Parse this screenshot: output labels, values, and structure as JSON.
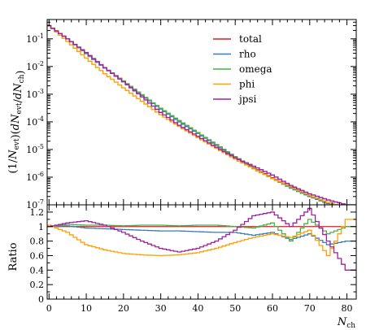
{
  "chart_data": [
    {
      "type": "line",
      "panel": "main",
      "ylabel": "(1/N_evt)(dN_evt/dN_ch)",
      "yscale": "log",
      "xlim": [
        -0.5,
        82.5
      ],
      "ylim": [
        1e-07,
        0.5
      ],
      "grid": false,
      "legend_position": "top-right",
      "ytick_labels": [
        "10^-1",
        "10^-2",
        "10^-3",
        "10^-4",
        "10^-5",
        "10^-6",
        "10^-7"
      ],
      "x": [
        0,
        5,
        10,
        15,
        20,
        25,
        30,
        35,
        40,
        45,
        50,
        55,
        60,
        65,
        70,
        75,
        80
      ],
      "series": [
        {
          "name": "total",
          "color": "#e41a1c",
          "values": [
            0.3,
            0.1,
            0.03,
            0.009,
            0.003,
            0.00095,
            0.0003,
            0.00011,
            4e-05,
            1.5e-05,
            5.5e-06,
            2.2e-06,
            9.5e-07,
            4.5e-07,
            2.2e-07,
            1.2e-07,
            8e-08
          ]
        },
        {
          "name": "rho",
          "color": "#377eb8",
          "values": [
            0.3,
            0.1,
            0.029,
            0.0088,
            0.0029,
            0.0009,
            0.00029,
            0.0001,
            3.8e-05,
            1.4e-05,
            5.2e-06,
            2e-06,
            9e-07,
            4e-07,
            2e-07,
            1.1e-07,
            7e-08
          ]
        },
        {
          "name": "omega",
          "color": "#4daf4a",
          "values": [
            0.3,
            0.1,
            0.03,
            0.009,
            0.003,
            0.00095,
            0.00031,
            0.00011,
            4.1e-05,
            1.5e-05,
            5.5e-06,
            2.1e-06,
            9e-07,
            4.2e-07,
            2.1e-07,
            1.2e-07,
            8e-08
          ]
        },
        {
          "name": "phi",
          "color": "#ff9f00",
          "values": [
            0.3,
            0.08,
            0.02,
            0.0055,
            0.0017,
            0.00055,
            0.00018,
            6.8e-05,
            2.7e-05,
            1.1e-05,
            4.5e-06,
            2e-06,
            9e-07,
            4.5e-07,
            2.2e-07,
            1.2e-07,
            8e-08
          ]
        },
        {
          "name": "jpsi",
          "color": "#a020a0",
          "values": [
            0.3,
            0.1,
            0.032,
            0.009,
            0.0028,
            0.0008,
            0.00022,
            7.5e-05,
            3e-05,
            1.2e-05,
            5e-06,
            2.5e-06,
            1.2e-06,
            5e-07,
            2.5e-07,
            1.5e-07,
            1e-07
          ]
        }
      ]
    },
    {
      "type": "line",
      "panel": "ratio",
      "xlabel": "N_ch",
      "ylabel": "Ratio",
      "xlim": [
        -0.5,
        82.5
      ],
      "ylim": [
        0,
        1.3
      ],
      "grid": false,
      "xtick_labels": [
        "0",
        "10",
        "20",
        "30",
        "40",
        "50",
        "60",
        "70",
        "80"
      ],
      "ytick_labels": [
        "0",
        "0.2",
        "0.4",
        "0.6",
        "0.8",
        "1",
        "1.2"
      ],
      "x": [
        0,
        5,
        10,
        15,
        20,
        25,
        30,
        35,
        40,
        45,
        50,
        55,
        60,
        65,
        70,
        75,
        80
      ],
      "series": [
        {
          "name": "total",
          "color": "#e41a1c",
          "values": [
            1.0,
            1.0,
            1.0,
            1.0,
            1.0,
            1.0,
            1.0,
            1.0,
            1.0,
            1.0,
            1.0,
            1.0,
            1.0,
            1.0,
            1.0,
            1.0,
            1.0
          ]
        },
        {
          "name": "rho",
          "color": "#377eb8",
          "values": [
            1.0,
            1.01,
            0.98,
            0.97,
            0.96,
            0.95,
            0.94,
            0.94,
            0.93,
            0.92,
            0.92,
            0.88,
            0.92,
            0.82,
            0.9,
            0.75,
            0.8
          ]
        },
        {
          "name": "omega",
          "color": "#4daf4a",
          "values": [
            1.0,
            1.03,
            1.02,
            1.02,
            1.01,
            1.02,
            1.02,
            1.01,
            1.02,
            1.02,
            1.0,
            0.98,
            1.05,
            0.8,
            1.1,
            0.9,
            1.0
          ]
        },
        {
          "name": "phi",
          "color": "#ff9f00",
          "values": [
            1.02,
            0.92,
            0.75,
            0.68,
            0.63,
            0.61,
            0.6,
            0.61,
            0.64,
            0.7,
            0.78,
            0.85,
            0.9,
            0.85,
            0.95,
            0.6,
            1.1
          ]
        },
        {
          "name": "jpsi",
          "color": "#a020a0",
          "values": [
            1.0,
            1.05,
            1.08,
            1.02,
            0.92,
            0.8,
            0.7,
            0.65,
            0.7,
            0.8,
            0.95,
            1.15,
            1.2,
            1.0,
            1.25,
            0.8,
            0.4
          ]
        }
      ]
    }
  ]
}
